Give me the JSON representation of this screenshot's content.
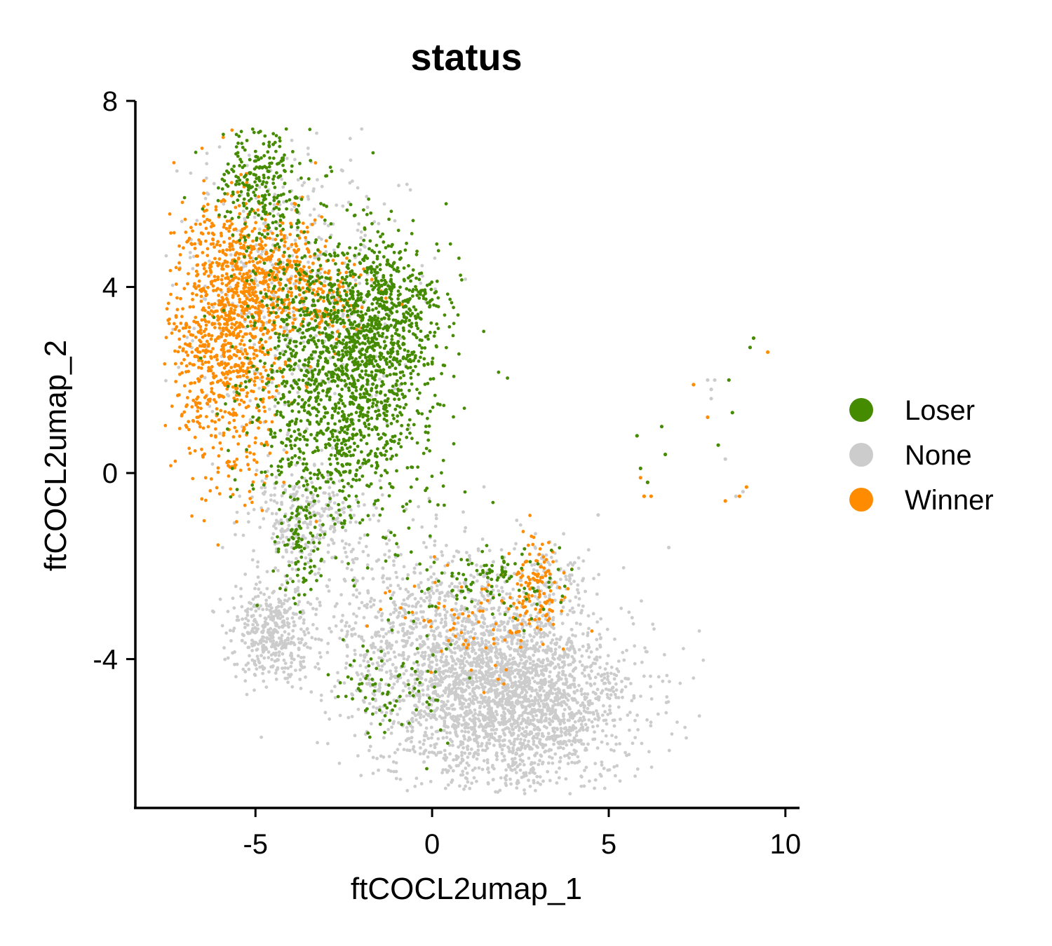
{
  "chart_data": {
    "type": "scatter",
    "title": "status",
    "xlabel": "ftCOCL2umap_1",
    "ylabel": "ftCOCL2umap_2",
    "xlim": [
      -8.4,
      10.4
    ],
    "ylim": [
      -7.2,
      8.0
    ],
    "xticks": [
      -5,
      0,
      5,
      10
    ],
    "xtick_labels": [
      "-5",
      "0",
      "5",
      "10"
    ],
    "yticks": [
      -4,
      0,
      4,
      8
    ],
    "ytick_labels": [
      "-4",
      "0",
      "4",
      "8"
    ],
    "grid": false,
    "legend_position": "right",
    "series": [
      {
        "name": "Loser",
        "color": "#458B00",
        "clusters": [
          {
            "cx": -2.6,
            "cy": 2.0,
            "sx": 1.3,
            "sy": 1.5,
            "n": 1500
          },
          {
            "cx": -4.9,
            "cy": 6.2,
            "sx": 0.6,
            "sy": 0.8,
            "n": 280
          },
          {
            "cx": -1.5,
            "cy": 3.4,
            "sx": 0.9,
            "sy": 0.8,
            "n": 450
          },
          {
            "cx": -3.8,
            "cy": -1.8,
            "sx": 0.3,
            "sy": 0.6,
            "n": 70
          },
          {
            "cx": -1.2,
            "cy": -4.7,
            "sx": 0.8,
            "sy": 0.6,
            "n": 90
          },
          {
            "cx": 1.6,
            "cy": -2.3,
            "sx": 1.2,
            "sy": 0.4,
            "n": 110
          }
        ],
        "points": [
          [
            9.1,
            2.9
          ],
          [
            9.0,
            2.7
          ],
          [
            5.8,
            0.8
          ],
          [
            6.5,
            1.0
          ],
          [
            6.6,
            0.4
          ],
          [
            8.4,
            2.0
          ],
          [
            8.5,
            1.3
          ],
          [
            8.1,
            0.6
          ],
          [
            6.1,
            -0.2
          ],
          [
            5.9,
            0.1
          ]
        ]
      },
      {
        "name": "None",
        "color": "#CCCCCC",
        "clusters": [
          {
            "cx": 2.2,
            "cy": -4.8,
            "sx": 1.7,
            "sy": 1.0,
            "n": 2600
          },
          {
            "cx": -0.3,
            "cy": -3.3,
            "sx": 1.4,
            "sy": 1.0,
            "n": 700
          },
          {
            "cx": -4.5,
            "cy": -3.4,
            "sx": 0.6,
            "sy": 0.5,
            "n": 420
          },
          {
            "cx": -3.5,
            "cy": -1.0,
            "sx": 0.9,
            "sy": 0.5,
            "n": 300
          },
          {
            "cx": -4.0,
            "cy": 4.0,
            "sx": 1.6,
            "sy": 1.6,
            "n": 500
          },
          {
            "cx": 3.5,
            "cy": -2.3,
            "sx": 0.5,
            "sy": 0.4,
            "n": 90
          }
        ],
        "points": [
          [
            8.0,
            2.0
          ],
          [
            7.8,
            2.0
          ],
          [
            7.9,
            1.6
          ],
          [
            8.3,
            0.3
          ],
          [
            8.6,
            -0.5
          ],
          [
            8.8,
            -0.4
          ],
          [
            4.7,
            -0.9
          ],
          [
            6.7,
            -1.6
          ],
          [
            6.0,
            -0.5
          ],
          [
            7.9,
            1.8
          ]
        ]
      },
      {
        "name": "Winner",
        "color": "#FF8C00",
        "clusters": [
          {
            "cx": -5.8,
            "cy": 2.9,
            "sx": 0.8,
            "sy": 1.5,
            "n": 950
          },
          {
            "cx": -4.8,
            "cy": 4.2,
            "sx": 1.0,
            "sy": 0.7,
            "n": 350
          },
          {
            "cx": -3.2,
            "cy": 3.8,
            "sx": 0.8,
            "sy": 0.5,
            "n": 120
          },
          {
            "cx": 3.0,
            "cy": -2.4,
            "sx": 0.4,
            "sy": 0.5,
            "n": 110
          },
          {
            "cx": 1.2,
            "cy": -3.2,
            "sx": 1.2,
            "sy": 0.6,
            "n": 80
          }
        ],
        "points": [
          [
            9.5,
            2.6
          ],
          [
            7.4,
            1.9
          ],
          [
            7.8,
            1.2
          ],
          [
            5.9,
            -0.1
          ],
          [
            6.0,
            -0.5
          ],
          [
            6.2,
            -0.5
          ],
          [
            8.3,
            -0.6
          ],
          [
            8.7,
            -0.5
          ],
          [
            8.9,
            -0.3
          ],
          [
            6.1,
            -0.2
          ]
        ]
      }
    ]
  }
}
